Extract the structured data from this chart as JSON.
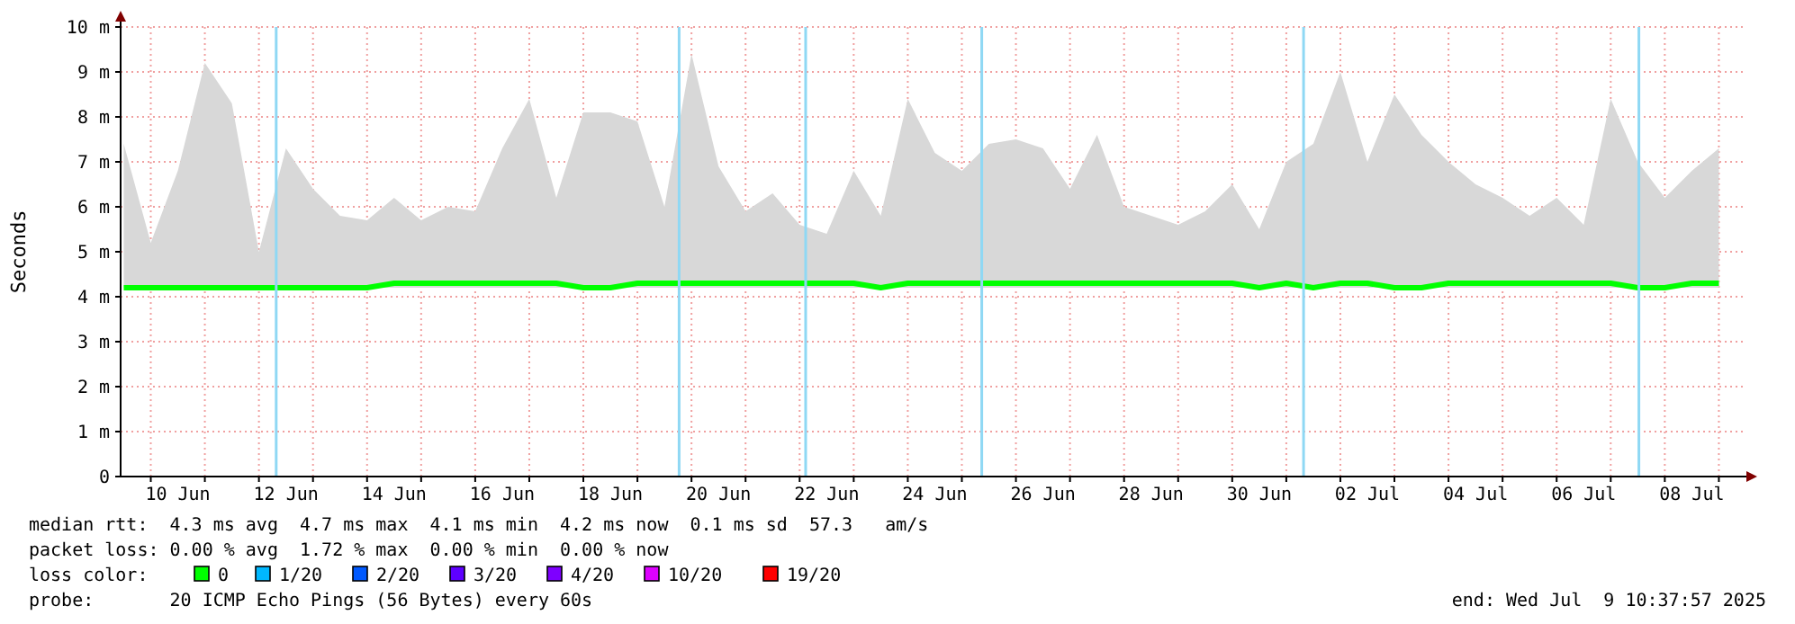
{
  "chart_data": {
    "type": "line",
    "ylabel": "Seconds",
    "legend_title": "loss color:",
    "legend": "bottom",
    "grid": true,
    "xlim": [
      "2025-06-09T10:37",
      "2025-07-09T10:37"
    ],
    "xticks": [
      {
        "value": "2025-06-10T00:00",
        "label": null
      },
      {
        "value": "2025-06-11T00:00",
        "label": null
      },
      {
        "value": "2025-06-12T00:00",
        "label": null
      },
      {
        "value": "2025-06-13T00:00",
        "label": null
      },
      {
        "value": "2025-06-14T00:00",
        "label": null
      },
      {
        "value": "2025-06-15T00:00",
        "label": null
      },
      {
        "value": "2025-06-16T00:00",
        "label": null
      },
      {
        "value": "2025-06-17T00:00",
        "label": null
      },
      {
        "value": "2025-06-18T00:00",
        "label": null
      },
      {
        "value": "2025-06-19T00:00",
        "label": null
      },
      {
        "value": "2025-06-20T00:00",
        "label": null
      },
      {
        "value": "2025-06-21T00:00",
        "label": null
      },
      {
        "value": "2025-06-22T00:00",
        "label": null
      },
      {
        "value": "2025-06-23T00:00",
        "label": null
      },
      {
        "value": "2025-06-24T00:00",
        "label": null
      },
      {
        "value": "2025-06-25T00:00",
        "label": null
      },
      {
        "value": "2025-06-26T00:00",
        "label": null
      },
      {
        "value": "2025-06-27T00:00",
        "label": null
      },
      {
        "value": "2025-06-28T00:00",
        "label": null
      },
      {
        "value": "2025-06-29T00:00",
        "label": null
      },
      {
        "value": "2025-06-30T00:00",
        "label": null
      },
      {
        "value": "2025-07-01T00:00",
        "label": null
      },
      {
        "value": "2025-07-02T00:00",
        "label": null
      },
      {
        "value": "2025-07-03T00:00",
        "label": null
      },
      {
        "value": "2025-07-04T00:00",
        "label": null
      },
      {
        "value": "2025-07-05T00:00",
        "label": null
      },
      {
        "value": "2025-07-06T00:00",
        "label": null
      },
      {
        "value": "2025-07-07T00:00",
        "label": null
      },
      {
        "value": "2025-07-08T00:00",
        "label": null
      },
      {
        "value": "2025-07-09T00:00",
        "label": null
      },
      {
        "value": "2025-06-10T12:00",
        "label": "10 Jun"
      },
      {
        "value": "2025-06-12T12:00",
        "label": "12 Jun"
      },
      {
        "value": "2025-06-14T12:00",
        "label": "14 Jun"
      },
      {
        "value": "2025-06-16T12:00",
        "label": "16 Jun"
      },
      {
        "value": "2025-06-18T12:00",
        "label": "18 Jun"
      },
      {
        "value": "2025-06-20T12:00",
        "label": "20 Jun"
      },
      {
        "value": "2025-06-22T12:00",
        "label": "22 Jun"
      },
      {
        "value": "2025-06-24T12:00",
        "label": "24 Jun"
      },
      {
        "value": "2025-06-26T12:00",
        "label": "26 Jun"
      },
      {
        "value": "2025-06-28T12:00",
        "label": "28 Jun"
      },
      {
        "value": "2025-06-30T12:00",
        "label": "30 Jun"
      },
      {
        "value": "2025-07-02T12:00",
        "label": "02 Jul"
      },
      {
        "value": "2025-07-04T12:00",
        "label": "04 Jul"
      },
      {
        "value": "2025-07-06T12:00",
        "label": "06 Jul"
      },
      {
        "value": "2025-07-08T12:00",
        "label": "08 Jul"
      }
    ],
    "ylim": [
      0,
      10
    ],
    "yticks": [
      0,
      {
        "value": 1,
        "label": "1 m"
      },
      {
        "value": 2,
        "label": "2 m"
      },
      {
        "value": 3,
        "label": "3 m"
      },
      {
        "value": 4,
        "label": "4 m"
      },
      {
        "value": 5,
        "label": "5 m"
      },
      {
        "value": 6,
        "label": "6 m"
      },
      {
        "value": 7,
        "label": "7 m"
      },
      {
        "value": 8,
        "label": "8 m"
      },
      {
        "value": 9,
        "label": "9 m"
      },
      {
        "value": 10,
        "label": "10 m"
      }
    ],
    "x": [
      "2025-06-09T12:00",
      "2025-06-10T00:00",
      "2025-06-10T12:00",
      "2025-06-11T00:00",
      "2025-06-11T12:00",
      "2025-06-12T00:00",
      "2025-06-12T12:00",
      "2025-06-13T00:00",
      "2025-06-13T12:00",
      "2025-06-14T00:00",
      "2025-06-14T12:00",
      "2025-06-15T00:00",
      "2025-06-15T12:00",
      "2025-06-16T00:00",
      "2025-06-16T12:00",
      "2025-06-17T00:00",
      "2025-06-17T12:00",
      "2025-06-18T00:00",
      "2025-06-18T12:00",
      "2025-06-19T00:00",
      "2025-06-19T12:00",
      "2025-06-20T00:00",
      "2025-06-20T12:00",
      "2025-06-21T00:00",
      "2025-06-21T12:00",
      "2025-06-22T00:00",
      "2025-06-22T12:00",
      "2025-06-23T00:00",
      "2025-06-23T12:00",
      "2025-06-24T00:00",
      "2025-06-24T12:00",
      "2025-06-25T00:00",
      "2025-06-25T12:00",
      "2025-06-26T00:00",
      "2025-06-26T12:00",
      "2025-06-27T00:00",
      "2025-06-27T12:00",
      "2025-06-28T00:00",
      "2025-06-28T12:00",
      "2025-06-29T00:00",
      "2025-06-29T12:00",
      "2025-06-30T00:00",
      "2025-06-30T12:00",
      "2025-07-01T00:00",
      "2025-07-01T12:00",
      "2025-07-02T00:00",
      "2025-07-02T12:00",
      "2025-07-03T00:00",
      "2025-07-03T12:00",
      "2025-07-04T00:00",
      "2025-07-04T12:00",
      "2025-07-05T00:00",
      "2025-07-05T12:00",
      "2025-07-06T00:00",
      "2025-07-06T12:00",
      "2025-07-07T00:00",
      "2025-07-07T12:00",
      "2025-07-08T00:00",
      "2025-07-08T12:00",
      "2025-07-09T00:00"
    ],
    "series": [
      {
        "name": "0",
        "color": "#00ff00",
        "values": [
          4.2,
          4.2,
          4.2,
          4.2,
          4.2,
          4.2,
          4.2,
          4.2,
          4.2,
          4.2,
          4.3,
          4.3,
          4.3,
          4.3,
          4.3,
          4.3,
          4.3,
          4.2,
          4.2,
          4.3,
          4.3,
          4.3,
          4.3,
          4.3,
          4.3,
          4.3,
          4.3,
          4.3,
          4.2,
          4.3,
          4.3,
          4.3,
          4.3,
          4.3,
          4.3,
          4.3,
          4.3,
          4.3,
          4.3,
          4.3,
          4.3,
          4.3,
          4.2,
          4.3,
          4.2,
          4.3,
          4.3,
          4.2,
          4.2,
          4.3,
          4.3,
          4.3,
          4.3,
          4.3,
          4.3,
          4.3,
          4.2,
          4.2,
          4.3,
          4.3
        ],
        "lower": [
          4.2,
          4.2,
          4.2,
          4.2,
          4.2,
          4.2,
          4.2,
          4.2,
          4.2,
          4.2,
          4.2,
          4.2,
          4.2,
          4.2,
          4.2,
          4.2,
          4.2,
          4.2,
          4.2,
          4.2,
          4.2,
          4.2,
          4.2,
          4.2,
          4.2,
          4.2,
          4.2,
          4.2,
          4.2,
          4.2,
          4.2,
          4.2,
          4.2,
          4.2,
          4.2,
          4.2,
          4.2,
          4.2,
          4.2,
          4.2,
          4.2,
          4.2,
          4.2,
          4.2,
          4.2,
          4.2,
          4.2,
          4.2,
          4.2,
          4.2,
          4.2,
          4.2,
          4.2,
          4.2,
          4.2,
          4.2,
          4.2,
          4.2,
          4.2,
          4.2
        ],
        "upper": [
          7.4,
          5.2,
          6.8,
          9.2,
          8.3,
          5.0,
          7.3,
          6.4,
          5.8,
          5.7,
          6.2,
          5.7,
          6.0,
          5.9,
          7.3,
          8.4,
          6.2,
          8.1,
          8.1,
          7.9,
          6.0,
          9.4,
          6.9,
          5.9,
          6.3,
          5.6,
          5.4,
          6.8,
          5.8,
          8.4,
          7.2,
          6.8,
          7.4,
          7.5,
          7.3,
          6.4,
          7.6,
          6.0,
          5.8,
          5.6,
          5.9,
          6.5,
          5.5,
          7.0,
          7.4,
          9.0,
          7.0,
          8.5,
          7.6,
          7.0,
          6.5,
          6.2,
          5.8,
          6.2,
          5.6,
          8.4,
          7.0,
          6.2,
          6.8,
          7.3
        ]
      },
      {
        "name": "1/20",
        "color": "#00b8ff",
        "values": [
          null,
          null,
          null,
          null,
          null,
          null,
          null,
          null,
          null,
          null,
          null,
          null,
          null,
          null,
          null,
          null,
          null,
          null,
          null,
          null,
          null,
          null,
          null,
          null,
          null,
          null,
          null,
          null,
          null,
          null,
          null,
          null,
          null,
          null,
          null,
          null,
          null,
          null,
          null,
          null,
          null,
          null,
          null,
          null,
          null,
          null,
          null,
          null,
          null,
          null,
          null,
          null,
          null,
          null,
          null,
          null,
          null,
          null,
          null,
          null
        ]
      },
      {
        "name": "2/20",
        "color": "#0059ff",
        "values": [
          null,
          null,
          null,
          null,
          null,
          null,
          null,
          null,
          null,
          null,
          null,
          null,
          null,
          null,
          null,
          null,
          null,
          null,
          null,
          null,
          null,
          null,
          null,
          null,
          null,
          null,
          null,
          null,
          null,
          null,
          null,
          null,
          null,
          null,
          null,
          null,
          null,
          null,
          null,
          null,
          null,
          null,
          null,
          null,
          null,
          null,
          null,
          null,
          null,
          null,
          null,
          null,
          null,
          null,
          null,
          null,
          null,
          null,
          null,
          null
        ]
      },
      {
        "name": "3/20",
        "color": "#5e00ff",
        "values": [
          null,
          null,
          null,
          null,
          null,
          null,
          null,
          null,
          null,
          null,
          null,
          null,
          null,
          null,
          null,
          null,
          null,
          null,
          null,
          null,
          null,
          null,
          null,
          null,
          null,
          null,
          null,
          null,
          null,
          null,
          null,
          null,
          null,
          null,
          null,
          null,
          null,
          null,
          null,
          null,
          null,
          null,
          null,
          null,
          null,
          null,
          null,
          null,
          null,
          null,
          null,
          null,
          null,
          null,
          null,
          null,
          null,
          null,
          null,
          null
        ]
      },
      {
        "name": "4/20",
        "color": "#7e00ff",
        "values": [
          null,
          null,
          null,
          null,
          null,
          null,
          null,
          null,
          null,
          null,
          null,
          null,
          null,
          null,
          null,
          null,
          null,
          null,
          null,
          null,
          null,
          null,
          null,
          null,
          null,
          null,
          null,
          null,
          null,
          null,
          null,
          null,
          null,
          null,
          null,
          null,
          null,
          null,
          null,
          null,
          null,
          null,
          null,
          null,
          null,
          null,
          null,
          null,
          null,
          null,
          null,
          null,
          null,
          null,
          null,
          null,
          null,
          null,
          null,
          null
        ]
      },
      {
        "name": "10/20",
        "color": "#dd00ff",
        "values": [
          null,
          null,
          null,
          null,
          null,
          null,
          null,
          null,
          null,
          null,
          null,
          null,
          null,
          null,
          null,
          null,
          null,
          null,
          null,
          null,
          null,
          null,
          null,
          null,
          null,
          null,
          null,
          null,
          null,
          null,
          null,
          null,
          null,
          null,
          null,
          null,
          null,
          null,
          null,
          null,
          null,
          null,
          null,
          null,
          null,
          null,
          null,
          null,
          null,
          null,
          null,
          null,
          null,
          null,
          null,
          null,
          null,
          null,
          null,
          null
        ]
      },
      {
        "name": "19/20",
        "color": "#ff0000",
        "values": [
          null,
          null,
          null,
          null,
          null,
          null,
          null,
          null,
          null,
          null,
          null,
          null,
          null,
          null,
          null,
          null,
          null,
          null,
          null,
          null,
          null,
          null,
          null,
          null,
          null,
          null,
          null,
          null,
          null,
          null,
          null,
          null,
          null,
          null,
          null,
          null,
          null,
          null,
          null,
          null,
          null,
          null,
          null,
          null,
          null,
          null,
          null,
          null,
          null,
          null,
          null,
          null,
          null,
          null,
          null,
          null,
          null,
          null,
          null,
          null
        ]
      }
    ],
    "ref_lines": [
      {
        "axis": "x",
        "value": "2025-06-12T07:40",
        "color": "#8fd8f4"
      },
      {
        "axis": "x",
        "value": "2025-06-19T18:30",
        "color": "#8fd8f4"
      },
      {
        "axis": "x",
        "value": "2025-06-22T02:40",
        "color": "#8fd8f4"
      },
      {
        "axis": "x",
        "value": "2025-06-25T08:50",
        "color": "#8fd8f4"
      },
      {
        "axis": "x",
        "value": "2025-07-01T07:40",
        "color": "#8fd8f4"
      },
      {
        "axis": "x",
        "value": "2025-07-07T12:30",
        "color": "#8fd8f4"
      }
    ],
    "annotations": [
      "median rtt:  4.3 ms avg  4.7 ms max  4.1 ms min  4.2 ms now  0.1 ms sd  57.3   am/s",
      "packet loss: 0.00 % avg  1.72 % max  0.00 % min  0.00 % now",
      "probe:       20 ICMP Echo Pings (56 Bytes) every 60s",
      "end: Wed Jul  9 10:37:57 2025"
    ]
  }
}
